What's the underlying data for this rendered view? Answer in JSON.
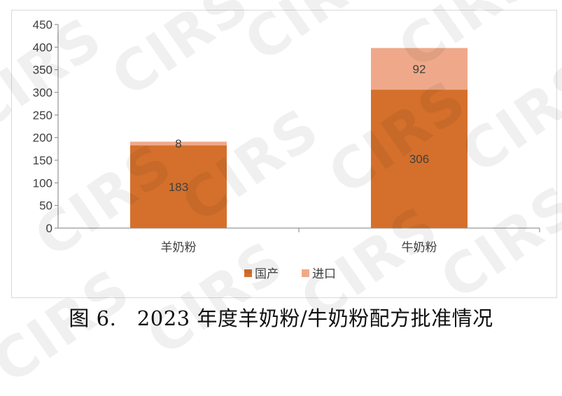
{
  "caption": "图 6.　2023 年度羊奶粉/牛奶粉配方批准情况",
  "watermark": "CIRS",
  "colors": {
    "domestic": "#d4702c",
    "import": "#efa98a",
    "axis": "#7f7f7f",
    "text": "#404040"
  },
  "chart_data": {
    "type": "bar",
    "stacked": true,
    "categories": [
      "羊奶粉",
      "牛奶粉"
    ],
    "series": [
      {
        "name": "国产",
        "values": [
          183,
          306
        ]
      },
      {
        "name": "进口",
        "values": [
          8,
          92
        ]
      }
    ],
    "yticks": [
      0,
      50,
      100,
      150,
      200,
      250,
      300,
      350,
      400,
      450
    ],
    "ylim": [
      0,
      450
    ],
    "title": "",
    "xlabel": "",
    "ylabel": "",
    "grid": false,
    "legend_position": "bottom"
  }
}
